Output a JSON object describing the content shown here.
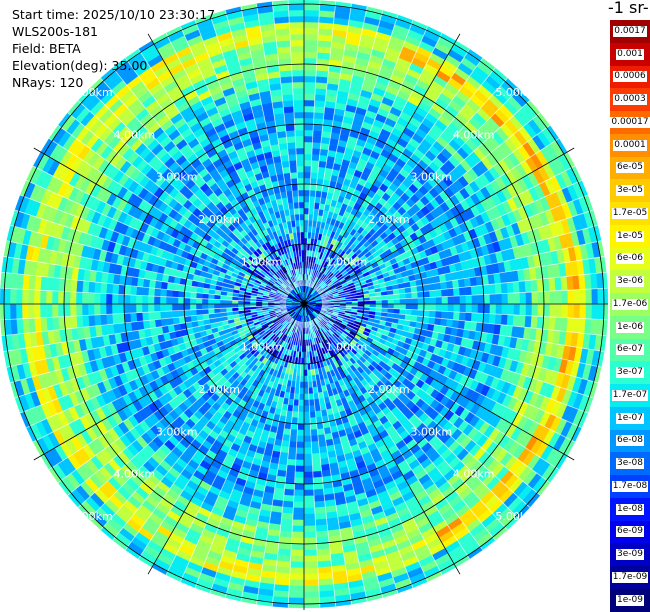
{
  "info": {
    "start_time": "Start time: 2025/10/10 23:30:17",
    "instrument": "WLS200s-181",
    "field": "Field: BETA",
    "elevation": "Elevation(deg): 35.00",
    "nrays": "NRays: 120"
  },
  "colorbar": {
    "unit_label": "-1 sr-",
    "labels": [
      "0.0017",
      "0.001",
      "0.0006",
      "0.0003",
      "0.00017",
      "0.0001",
      "6e-05",
      "3e-05",
      "1.7e-05",
      "1e-05",
      "6e-06",
      "3e-06",
      "1.7e-06",
      "1e-06",
      "6e-07",
      "3e-07",
      "1.7e-07",
      "1e-07",
      "6e-08",
      "3e-08",
      "1.7e-08",
      "1e-08",
      "6e-09",
      "3e-09",
      "1.7e-09",
      "1e-09"
    ],
    "colors": [
      "#a00000",
      "#c80000",
      "#ee1c00",
      "#ff3c00",
      "#ff6a00",
      "#ff8e00",
      "#ffae00",
      "#ffca00",
      "#ffe100",
      "#fff400",
      "#e5ff1a",
      "#c2ff3d",
      "#9cff62",
      "#78ff86",
      "#54ffaa",
      "#2cffd2",
      "#06ecf1",
      "#00c4ff",
      "#0096ff",
      "#006aff",
      "#0040ff",
      "#0014ff",
      "#0000ec",
      "#0000c4",
      "#00009c",
      "#000078"
    ]
  },
  "chart_data": {
    "type": "heatmap",
    "title": "",
    "xlabel": "",
    "ylabel": "",
    "projection": "polar PPI",
    "elevation_deg": 35.0,
    "n_rays": 120,
    "field": "BETA",
    "range_rings_km": [
      1.0,
      2.0,
      3.0,
      4.0,
      5.0
    ],
    "range_ring_labels": [
      "1.00km",
      "2.00km",
      "3.00km",
      "4.00km",
      "5.00km"
    ],
    "azimuth_grid_deg": [
      0,
      30,
      60,
      90,
      120,
      150,
      180,
      210,
      240,
      270,
      300,
      330
    ],
    "max_range_km": 5.0,
    "colorbar_scale": "log",
    "colorbar_range": [
      1e-09,
      0.0017
    ],
    "dominant_value_by_range_km": [
      {
        "range_km": [
          0.0,
          1.0
        ],
        "value": 3e-08
      },
      {
        "range_km": [
          1.0,
          3.4
        ],
        "value": 1.2e-07
      },
      {
        "range_km": [
          3.4,
          3.8
        ],
        "value": 3e-07
      },
      {
        "range_km": [
          3.8,
          4.4
        ],
        "value": 1.5e-06
      },
      {
        "range_km": [
          4.4,
          4.7
        ],
        "value": 6e-06
      },
      {
        "range_km": [
          4.7,
          5.0
        ],
        "value": 3e-07
      }
    ],
    "enhanced_sector_deg": [
      20,
      150
    ],
    "enhanced_ring_value": 3e-05
  }
}
